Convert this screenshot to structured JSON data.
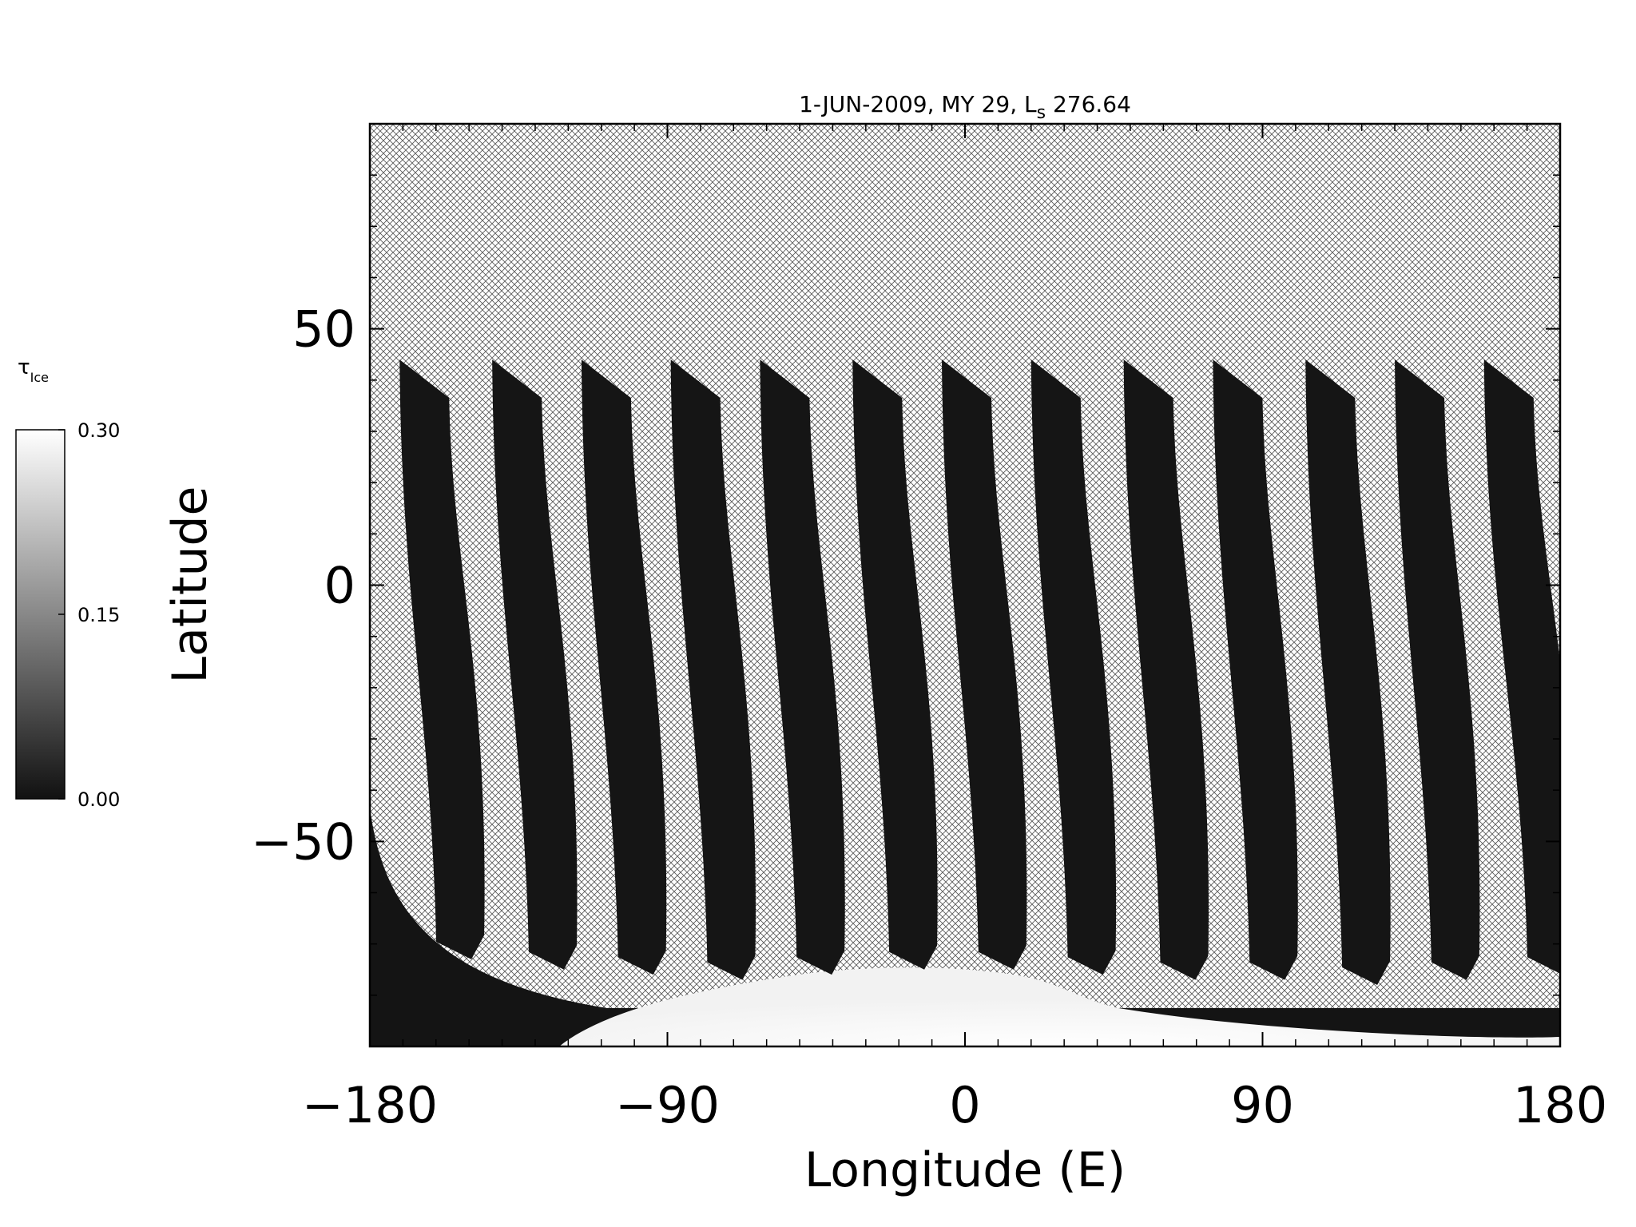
{
  "chart_data": {
    "type": "heatmap",
    "title": "1-JUN-2009, MY 29,  L",
    "title_subscript": "s",
    "title_suffix": " 276.64",
    "xlabel": "Longitude (E)",
    "ylabel": "Latitude",
    "xlim": [
      -180,
      180
    ],
    "ylim": [
      -90,
      90
    ],
    "x_ticks": [
      -180,
      -90,
      0,
      90,
      180
    ],
    "x_tick_labels": [
      "−180",
      "−90",
      "0",
      "90",
      "180"
    ],
    "y_ticks": [
      -50,
      0,
      50
    ],
    "y_tick_labels": [
      "−50",
      "0",
      "50"
    ],
    "grid": false,
    "no_data_fill": "crosshatch",
    "colorbar": {
      "label": "τ",
      "label_subscript": "Ice",
      "min": 0.0,
      "max": 0.3,
      "ticks": [
        0.0,
        0.15,
        0.3
      ],
      "tick_labels": [
        "0.00",
        "0.15",
        "0.30"
      ],
      "colormap": "grayscale",
      "low_color": "#111111",
      "high_color": "#ffffff"
    },
    "swaths": [
      {
        "top_lon": -171,
        "top_lat": 44,
        "bottom_lon": -158,
        "bottom_lat": -73
      },
      {
        "top_lon": -143,
        "top_lat": 44,
        "bottom_lon": -130,
        "bottom_lat": -75
      },
      {
        "top_lon": -116,
        "top_lat": 44,
        "bottom_lon": -103,
        "bottom_lat": -76
      },
      {
        "top_lon": -89,
        "top_lat": 44,
        "bottom_lon": -76,
        "bottom_lat": -77
      },
      {
        "top_lon": -62,
        "top_lat": 44,
        "bottom_lon": -49,
        "bottom_lat": -76
      },
      {
        "top_lon": -34,
        "top_lat": 44,
        "bottom_lon": -21,
        "bottom_lat": -75
      },
      {
        "top_lon": -7,
        "top_lat": 44,
        "bottom_lon": 6,
        "bottom_lat": -75
      },
      {
        "top_lon": 20,
        "top_lat": 44,
        "bottom_lon": 33,
        "bottom_lat": -76
      },
      {
        "top_lon": 48,
        "top_lat": 44,
        "bottom_lon": 61,
        "bottom_lat": -77
      },
      {
        "top_lon": 75,
        "top_lat": 44,
        "bottom_lon": 88,
        "bottom_lat": -77
      },
      {
        "top_lon": 103,
        "top_lat": 44,
        "bottom_lon": 116,
        "bottom_lat": -78
      },
      {
        "top_lon": 130,
        "top_lat": 44,
        "bottom_lon": 143,
        "bottom_lat": -77
      },
      {
        "top_lon": 157,
        "top_lat": 44,
        "bottom_lon": 172,
        "bottom_lat": -76
      }
    ]
  }
}
